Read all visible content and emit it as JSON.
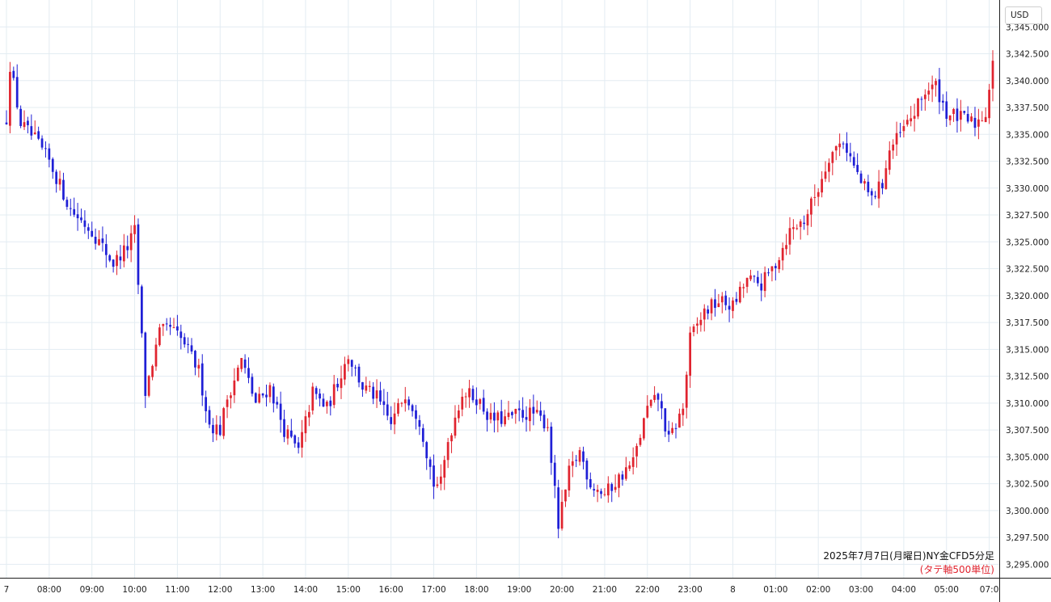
{
  "currency": "USD",
  "caption": {
    "title": "2025年7月7日(月曜日)NY金CFD5分足",
    "note": "(タテ軸500単位)"
  },
  "colors": {
    "up": "#e0242f",
    "down": "#1f1fd6",
    "grid": "#e3ecf2",
    "axis": "#1e1e1e"
  },
  "chart_data": {
    "type": "candlestick",
    "title": "",
    "ylim": [
      3293750,
      3347500
    ],
    "y_ticks": [
      {
        "value": 3295000,
        "label": "3,295.000"
      },
      {
        "value": 3297500,
        "label": "3,297.500"
      },
      {
        "value": 3300000,
        "label": "3,300.000"
      },
      {
        "value": 3302500,
        "label": "3,302.500"
      },
      {
        "value": 3305000,
        "label": "3,305.000"
      },
      {
        "value": 3307500,
        "label": "3,307.500"
      },
      {
        "value": 3310000,
        "label": "3,310.000"
      },
      {
        "value": 3312500,
        "label": "3,312.500"
      },
      {
        "value": 3315000,
        "label": "3,315.000"
      },
      {
        "value": 3317500,
        "label": "3,317.500"
      },
      {
        "value": 3320000,
        "label": "3,320.000"
      },
      {
        "value": 3322500,
        "label": "3,322.500"
      },
      {
        "value": 3325000,
        "label": "3,325.000"
      },
      {
        "value": 3327500,
        "label": "3,327.500"
      },
      {
        "value": 3330000,
        "label": "3,330.000"
      },
      {
        "value": 3332500,
        "label": "3,332.500"
      },
      {
        "value": 3335000,
        "label": "3,335.000"
      },
      {
        "value": 3337500,
        "label": "3,337.500"
      },
      {
        "value": 3340000,
        "label": "3,340.000"
      },
      {
        "value": 3342500,
        "label": "3,342.500"
      },
      {
        "value": 3345000,
        "label": "3,345.000"
      }
    ],
    "x_ticks": [
      {
        "index": 0,
        "label": "7"
      },
      {
        "index": 12,
        "label": "08:00"
      },
      {
        "index": 24,
        "label": "09:00"
      },
      {
        "index": 36,
        "label": "10:00"
      },
      {
        "index": 48,
        "label": "11:00"
      },
      {
        "index": 60,
        "label": "12:00"
      },
      {
        "index": 72,
        "label": "13:00"
      },
      {
        "index": 84,
        "label": "14:00"
      },
      {
        "index": 96,
        "label": "15:00"
      },
      {
        "index": 108,
        "label": "16:00"
      },
      {
        "index": 120,
        "label": "17:00"
      },
      {
        "index": 132,
        "label": "18:00"
      },
      {
        "index": 144,
        "label": "19:00"
      },
      {
        "index": 156,
        "label": "20:00"
      },
      {
        "index": 168,
        "label": "21:00"
      },
      {
        "index": 180,
        "label": "22:00"
      },
      {
        "index": 192,
        "label": "23:00"
      },
      {
        "index": 204,
        "label": "8"
      },
      {
        "index": 216,
        "label": "01:00"
      },
      {
        "index": 228,
        "label": "02:00"
      },
      {
        "index": 240,
        "label": "03:00"
      },
      {
        "index": 252,
        "label": "04:00"
      },
      {
        "index": 264,
        "label": "05:00"
      },
      {
        "index": 276,
        "label": "07:0"
      }
    ],
    "anchors": [
      [
        0,
        3336500
      ],
      [
        1,
        3341500
      ],
      [
        4,
        3336000
      ],
      [
        8,
        3334500
      ],
      [
        12,
        3332500
      ],
      [
        18,
        3328000
      ],
      [
        24,
        3326000
      ],
      [
        30,
        3323000
      ],
      [
        34,
        3324500
      ],
      [
        36,
        3326000
      ],
      [
        39,
        3311000
      ],
      [
        43,
        3316500
      ],
      [
        46,
        3317000
      ],
      [
        50,
        3315500
      ],
      [
        54,
        3313000
      ],
      [
        57,
        3308000
      ],
      [
        60,
        3307500
      ],
      [
        62,
        3310500
      ],
      [
        66,
        3314000
      ],
      [
        70,
        3310000
      ],
      [
        74,
        3311500
      ],
      [
        78,
        3307500
      ],
      [
        82,
        3305500
      ],
      [
        86,
        3311000
      ],
      [
        90,
        3309500
      ],
      [
        96,
        3314500
      ],
      [
        100,
        3311500
      ],
      [
        104,
        3310500
      ],
      [
        108,
        3308000
      ],
      [
        112,
        3311000
      ],
      [
        116,
        3308500
      ],
      [
        120,
        3302500
      ],
      [
        122,
        3302500
      ],
      [
        124,
        3306500
      ],
      [
        128,
        3311000
      ],
      [
        132,
        3310500
      ],
      [
        136,
        3308500
      ],
      [
        140,
        3308500
      ],
      [
        144,
        3309000
      ],
      [
        148,
        3309000
      ],
      [
        152,
        3308000
      ],
      [
        155,
        3298500
      ],
      [
        158,
        3303500
      ],
      [
        161,
        3305500
      ],
      [
        164,
        3302500
      ],
      [
        168,
        3301500
      ],
      [
        172,
        3303000
      ],
      [
        176,
        3304500
      ],
      [
        180,
        3309500
      ],
      [
        183,
        3310500
      ],
      [
        186,
        3306500
      ],
      [
        190,
        3309500
      ],
      [
        192,
        3316000
      ],
      [
        196,
        3318500
      ],
      [
        200,
        3319500
      ],
      [
        204,
        3319000
      ],
      [
        208,
        3321500
      ],
      [
        212,
        3321000
      ],
      [
        216,
        3323000
      ],
      [
        220,
        3326000
      ],
      [
        224,
        3327000
      ],
      [
        228,
        3330000
      ],
      [
        231,
        3333000
      ],
      [
        235,
        3334500
      ],
      [
        238,
        3332000
      ],
      [
        240,
        3330500
      ],
      [
        243,
        3329000
      ],
      [
        246,
        3330500
      ],
      [
        248,
        3333500
      ],
      [
        252,
        3335500
      ],
      [
        255,
        3337000
      ],
      [
        258,
        3339000
      ],
      [
        261,
        3339500
      ],
      [
        264,
        3337000
      ],
      [
        268,
        3336500
      ],
      [
        272,
        3336000
      ],
      [
        275,
        3337000
      ],
      [
        276,
        3339500
      ],
      [
        277,
        3342000
      ]
    ]
  }
}
